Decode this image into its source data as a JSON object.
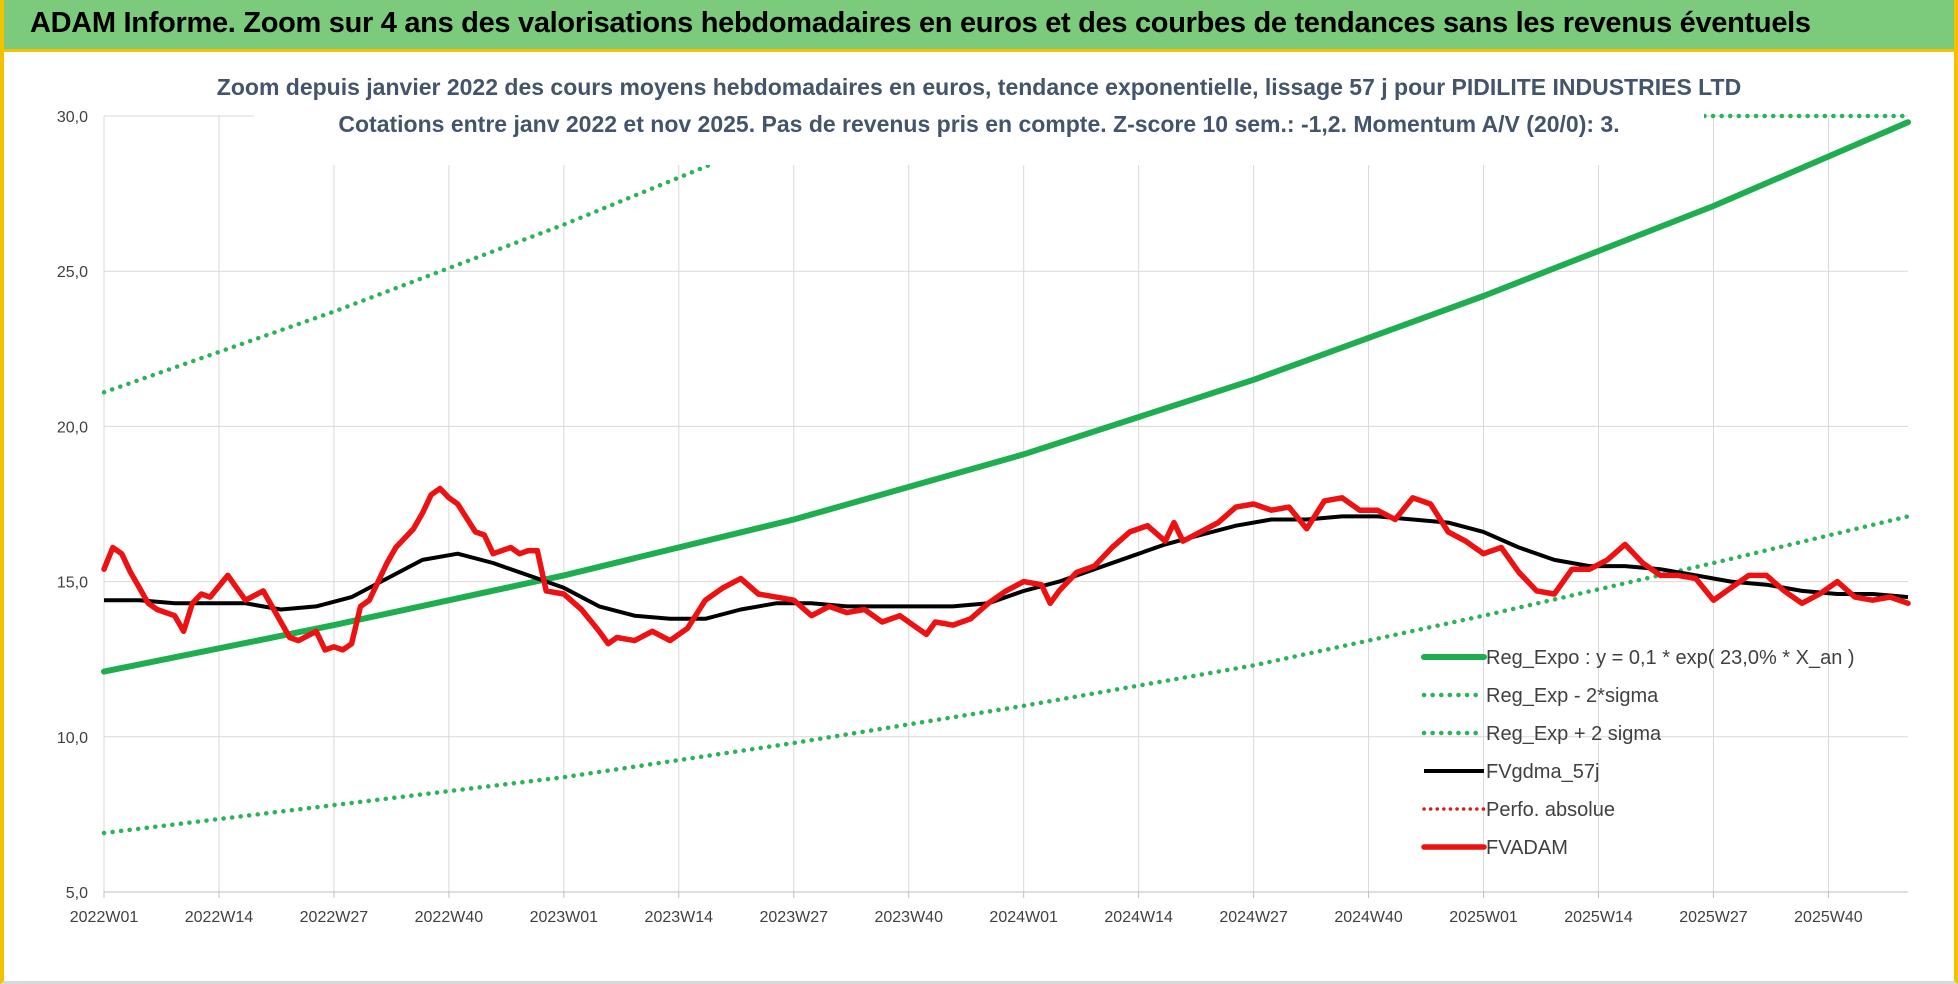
{
  "banner": {
    "title": "ADAM Informe. Zoom sur 4 ans des valorisations hebdomadaires en euros et des courbes de tendances sans les revenus éventuels"
  },
  "colors": {
    "banner_bg": "#7ccb7c",
    "frame_border": "#f2c200",
    "title_text": "#44546a",
    "trend_green": "#1fae4f",
    "dotted_green": "#2bb35a",
    "black": "#000000",
    "red": "#ee1111"
  },
  "chart_data": {
    "type": "line",
    "title_line1": "Zoom depuis janvier 2022 des cours moyens hebdomadaires en euros, tendance exponentielle, lissage 57 j pour PIDILITE INDUSTRIES LTD",
    "title_line2": "Cotations entre janv 2022 et nov 2025. Pas de revenus pris en compte. Z-score 10 sem.: -1,2. Momentum A/V (20/0): 3.",
    "ylim": [
      5,
      30
    ],
    "y_ticks": [
      "5,0",
      "10,0",
      "15,0",
      "20,0",
      "25,0",
      "30,0"
    ],
    "y_tick_values": [
      5,
      10,
      15,
      20,
      25,
      30
    ],
    "x_range": [
      0,
      200
    ],
    "x_ticks": [
      "2022W01",
      "2022W14",
      "2022W27",
      "2022W40",
      "2023W01",
      "2023W14",
      "2023W27",
      "2023W40",
      "2024W01",
      "2024W14",
      "2024W27",
      "2024W40",
      "2025W01",
      "2025W14",
      "2025W27",
      "2025W40"
    ],
    "x_tick_index": [
      0,
      13,
      26,
      39,
      52,
      65,
      78,
      91,
      104,
      117,
      130,
      143,
      156,
      169,
      182,
      195
    ],
    "legend": {
      "placement": "bottom-right",
      "entries": [
        {
          "name": "Reg_Expo : y = 0,1 * exp( 23,0% *  X_an )",
          "style": "solid-green"
        },
        {
          "name": "Reg_Exp - 2*sigma",
          "style": "dotted-green"
        },
        {
          "name": "Reg_Exp + 2 sigma",
          "style": "dotted-green"
        },
        {
          "name": "FVgdma_57j",
          "style": "solid-black"
        },
        {
          "name": "Perfo. absolue",
          "style": "dotted-red"
        },
        {
          "name": "FVADAM",
          "style": "solid-red"
        }
      ]
    },
    "series": [
      {
        "name": "Reg_Expo",
        "style": "solid-green",
        "x": [
          0,
          26,
          52,
          78,
          104,
          130,
          156,
          182,
          204
        ],
        "y": [
          12.1,
          13.6,
          15.2,
          17.0,
          19.1,
          21.5,
          24.2,
          27.1,
          29.8
        ]
      },
      {
        "name": "Reg_Exp - 2*sigma",
        "style": "dotted-green",
        "x": [
          0,
          26,
          52,
          78,
          104,
          130,
          156,
          182,
          204
        ],
        "y": [
          6.9,
          7.8,
          8.7,
          9.8,
          11.0,
          12.3,
          13.9,
          15.6,
          17.1
        ]
      },
      {
        "name": "Reg_Exp + 2 sigma",
        "style": "dotted-green",
        "x": [
          0,
          26,
          52,
          70
        ],
        "y": [
          21.1,
          23.7,
          26.5,
          28.6
        ],
        "x2": [
          180,
          204
        ],
        "y2": [
          30.0,
          30.0
        ]
      },
      {
        "name": "FVgdma_57j",
        "style": "solid-black",
        "x": [
          0,
          4,
          8,
          12,
          16,
          20,
          24,
          28,
          32,
          36,
          40,
          44,
          48,
          52,
          56,
          60,
          64,
          68,
          72,
          76,
          80,
          84,
          88,
          92,
          96,
          100,
          104,
          108,
          112,
          116,
          120,
          124,
          128,
          132,
          136,
          140,
          144,
          148,
          152,
          156,
          160,
          164,
          168,
          172,
          176,
          180,
          184,
          188,
          192,
          196,
          200,
          204
        ],
        "y": [
          14.4,
          14.4,
          14.3,
          14.3,
          14.3,
          14.1,
          14.2,
          14.5,
          15.1,
          15.7,
          15.9,
          15.6,
          15.2,
          14.8,
          14.2,
          13.9,
          13.8,
          13.8,
          14.1,
          14.3,
          14.3,
          14.2,
          14.2,
          14.2,
          14.2,
          14.3,
          14.7,
          15.0,
          15.4,
          15.8,
          16.2,
          16.5,
          16.8,
          17.0,
          17.0,
          17.1,
          17.1,
          17.0,
          16.9,
          16.6,
          16.1,
          15.7,
          15.5,
          15.5,
          15.4,
          15.2,
          15.0,
          14.9,
          14.7,
          14.6,
          14.6,
          14.5
        ]
      },
      {
        "name": "FVADAM",
        "style": "solid-red",
        "x": [
          0,
          1,
          2,
          3,
          4,
          5,
          6,
          8,
          9,
          10,
          11,
          12,
          14,
          15,
          16,
          18,
          19,
          21,
          22,
          24,
          25,
          26,
          27,
          28,
          29,
          30,
          32,
          33,
          35,
          36,
          37,
          38,
          39,
          40,
          42,
          43,
          44,
          46,
          47,
          48,
          49,
          50,
          52,
          54,
          56,
          57,
          58,
          60,
          62,
          64,
          66,
          68,
          70,
          72,
          74,
          76,
          78,
          80,
          82,
          84,
          86,
          88,
          90,
          92,
          93,
          94,
          96,
          98,
          100,
          102,
          104,
          106,
          107,
          108,
          110,
          112,
          114,
          116,
          118,
          120,
          121,
          122,
          124,
          126,
          128,
          130,
          132,
          134,
          136,
          138,
          140,
          142,
          144,
          146,
          148,
          150,
          152,
          154,
          156,
          158,
          160,
          162,
          164,
          166,
          168,
          170,
          172,
          174,
          176,
          178,
          180,
          182,
          184,
          186,
          188,
          190,
          192,
          194,
          196,
          198,
          200,
          202,
          204
        ],
        "y": [
          15.4,
          16.1,
          15.9,
          15.3,
          14.8,
          14.3,
          14.1,
          13.9,
          13.4,
          14.3,
          14.6,
          14.5,
          15.2,
          14.8,
          14.4,
          14.7,
          14.2,
          13.2,
          13.1,
          13.4,
          12.8,
          12.9,
          12.8,
          13.0,
          14.2,
          14.4,
          15.6,
          16.1,
          16.7,
          17.2,
          17.8,
          18.0,
          17.7,
          17.5,
          16.6,
          16.5,
          15.9,
          16.1,
          15.9,
          16.0,
          16.0,
          14.7,
          14.6,
          14.1,
          13.4,
          13.0,
          13.2,
          13.1,
          13.4,
          13.1,
          13.5,
          14.4,
          14.8,
          15.1,
          14.6,
          14.5,
          14.4,
          13.9,
          14.2,
          14.0,
          14.1,
          13.7,
          13.9,
          13.5,
          13.3,
          13.7,
          13.6,
          13.8,
          14.3,
          14.7,
          15.0,
          14.9,
          14.3,
          14.7,
          15.3,
          15.5,
          16.1,
          16.6,
          16.8,
          16.3,
          16.9,
          16.3,
          16.6,
          16.9,
          17.4,
          17.5,
          17.3,
          17.4,
          16.7,
          17.6,
          17.7,
          17.3,
          17.3,
          17.0,
          17.7,
          17.5,
          16.6,
          16.3,
          15.9,
          16.1,
          15.3,
          14.7,
          14.6,
          15.4,
          15.4,
          15.7,
          16.2,
          15.6,
          15.2,
          15.2,
          15.1,
          14.4,
          14.8,
          15.2,
          15.2,
          14.7,
          14.3,
          14.6,
          15.0,
          14.5,
          14.4,
          14.5,
          14.3
        ]
      }
    ]
  }
}
